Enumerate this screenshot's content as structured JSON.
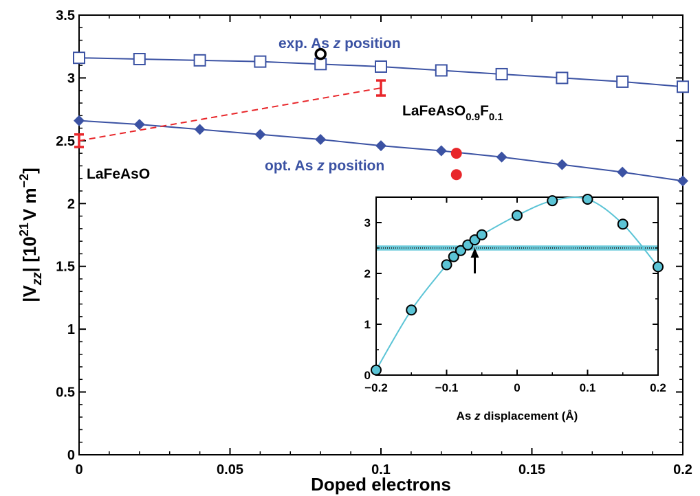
{
  "chart_data": [
    {
      "type": "scatter",
      "xlabel": "Doped electrons",
      "ylabel_parts": {
        "open": "|V",
        "sub": "zz",
        "close": "| [10",
        "exp": "21",
        "unit": "V m",
        "unit_exp": "−2",
        "end": "]"
      },
      "xlim": [
        0,
        0.2
      ],
      "ylim": [
        0,
        3.5
      ],
      "x_ticks": [
        "0",
        "0.05",
        "0.1",
        "0.15",
        "0.2"
      ],
      "y_ticks": [
        "0",
        "0.5",
        "1",
        "1.5",
        "2",
        "2.5",
        "3",
        "3.5"
      ],
      "grid": false,
      "series": [
        {
          "marker": "open-square",
          "line": "solid",
          "color": "#3b52a3",
          "x": [
            0,
            0.02,
            0.04,
            0.06,
            0.08,
            0.1,
            0.12,
            0.14,
            0.16,
            0.18,
            0.2
          ],
          "y": [
            3.16,
            3.15,
            3.14,
            3.13,
            3.11,
            3.09,
            3.06,
            3.03,
            3.0,
            2.97,
            2.93
          ]
        },
        {
          "marker": "filled-diamond",
          "line": "solid",
          "color": "#3b52a3",
          "x": [
            0,
            0.02,
            0.04,
            0.06,
            0.08,
            0.1,
            0.12,
            0.14,
            0.16,
            0.18,
            0.2
          ],
          "y": [
            2.66,
            2.63,
            2.59,
            2.55,
            2.51,
            2.46,
            2.42,
            2.37,
            2.31,
            2.25,
            2.18
          ]
        },
        {
          "marker": "open-circle",
          "line": "none",
          "color": "#000000",
          "x": [
            0.08
          ],
          "y": [
            3.19
          ]
        },
        {
          "marker": "filled-circle",
          "line": "none",
          "color": "#e8262a",
          "x": [
            0.125,
            0.125
          ],
          "y": [
            2.4,
            2.23
          ]
        },
        {
          "marker": "error-bar",
          "line": "dashed",
          "color": "#e8262a",
          "x": [
            0,
            0.1
          ],
          "y": [
            2.5,
            2.92
          ],
          "y_low": [
            2.45,
            2.86
          ],
          "y_high": [
            2.55,
            2.98
          ]
        }
      ],
      "annotations": [
        {
          "label_parts": [
            "exp. As ",
            "z",
            " position"
          ],
          "color": "#3b52a3"
        },
        {
          "label_parts": [
            "opt. As ",
            "z",
            " position"
          ],
          "color": "#3b52a3"
        },
        {
          "label": "LaFeAsO",
          "color": "#000000"
        },
        {
          "label_parts": {
            "base": "LaFeAsO",
            "sub1": "0.9",
            "mid": "F",
            "sub2": "0.1"
          },
          "color": "#000000"
        }
      ]
    },
    {
      "type": "scatter",
      "xlabel_parts": [
        "As ",
        "z",
        " displacement (Å)"
      ],
      "xlim": [
        -0.2,
        0.2
      ],
      "ylim": [
        0,
        3.5
      ],
      "x_ticks": [
        "−0.2",
        "−0.1",
        "0",
        "0.1",
        "0.2"
      ],
      "y_ticks": [
        "0",
        "1",
        "2",
        "3"
      ],
      "grid": false,
      "series": [
        {
          "marker": "filled-circle-outlined",
          "color": "#5bc4d6",
          "x": [
            -0.2,
            -0.15,
            -0.1,
            -0.09,
            -0.08,
            -0.07,
            -0.06,
            -0.05,
            0,
            0.05,
            0.1,
            0.15,
            0.2
          ],
          "y": [
            0.1,
            1.28,
            2.17,
            2.33,
            2.45,
            2.56,
            2.66,
            2.76,
            3.14,
            3.43,
            3.46,
            2.97,
            2.13
          ]
        }
      ],
      "reference_band": {
        "y": 2.5,
        "half_width": 0.05,
        "color": "#5bc4d6"
      },
      "arrow": {
        "x": -0.06,
        "y_from": 2.0,
        "y_to": 2.5
      }
    }
  ]
}
